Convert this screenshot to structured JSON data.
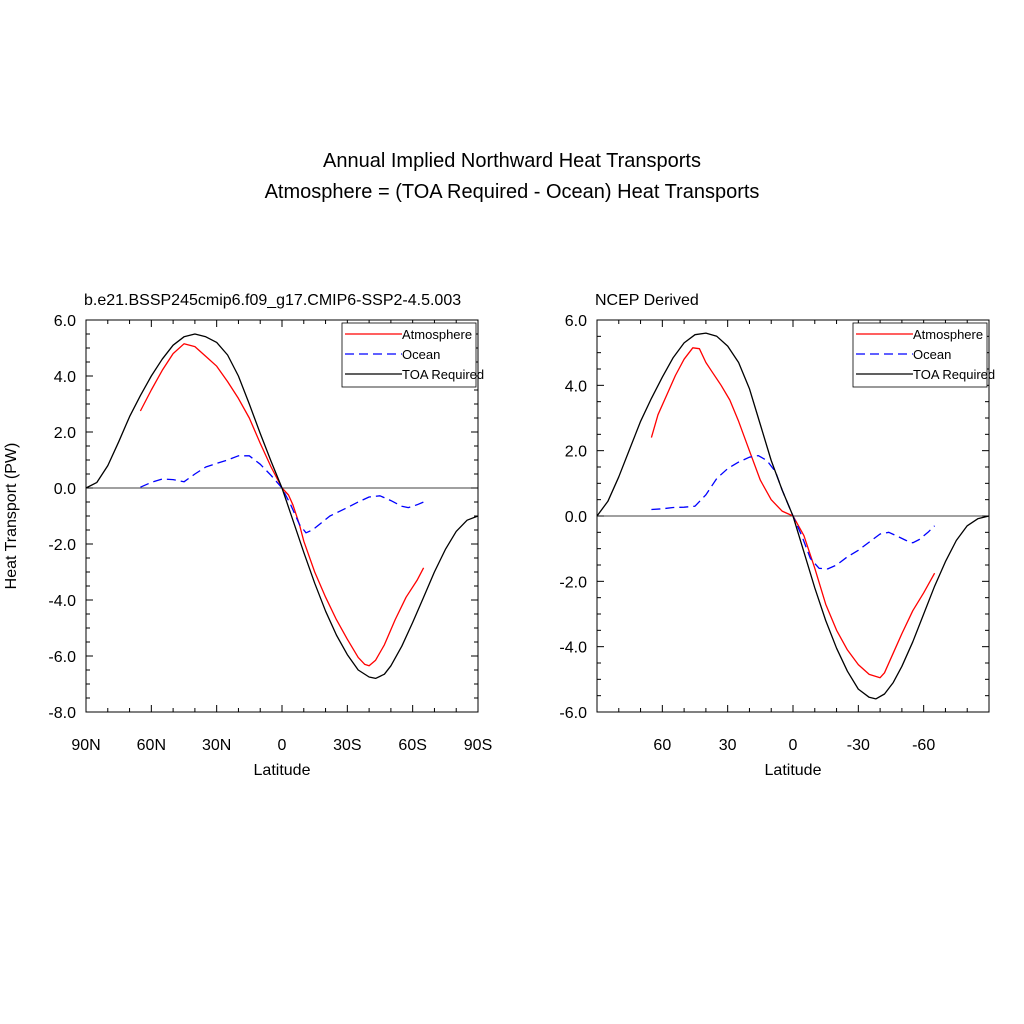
{
  "figure": {
    "title_line1": "Annual Implied Northward Heat Transports",
    "title_line2": "Atmosphere = (TOA Required - Ocean) Heat Transports"
  },
  "chart_data": [
    {
      "type": "line",
      "title": "b.e21.BSSP245cmip6.f09_g17.CMIP6-SSP2-4.5.003",
      "xlabel": "Latitude",
      "ylabel": "Heat Transport (PW)",
      "xlim": [
        90,
        -90
      ],
      "ylim": [
        -8,
        6
      ],
      "xticks": [
        90,
        60,
        30,
        0,
        -30,
        -60,
        -90
      ],
      "xtick_labels": [
        "90N",
        "60N",
        "30N",
        "0",
        "30S",
        "60S",
        "90S"
      ],
      "yticks": [
        -8,
        -6,
        -4,
        -2,
        0,
        2,
        4,
        6
      ],
      "ytick_labels": [
        "-8.0",
        "-6.0",
        "-4.0",
        "-2.0",
        "0.0",
        "2.0",
        "4.0",
        "6.0"
      ],
      "zero_line": true,
      "legend_position": "top-right",
      "series": [
        {
          "name": "Atmosphere",
          "color": "#ff0000",
          "dash": "solid",
          "points": [
            [
              65,
              2.75
            ],
            [
              60,
              3.5
            ],
            [
              55,
              4.2
            ],
            [
              50,
              4.8
            ],
            [
              45,
              5.15
            ],
            [
              40,
              5.05
            ],
            [
              35,
              4.7
            ],
            [
              30,
              4.35
            ],
            [
              25,
              3.8
            ],
            [
              20,
              3.2
            ],
            [
              15,
              2.5
            ],
            [
              10,
              1.6
            ],
            [
              5,
              0.75
            ],
            [
              0,
              0
            ],
            [
              -3,
              -0.25
            ],
            [
              -5,
              -0.6
            ],
            [
              -8,
              -1.3
            ],
            [
              -10,
              -1.9
            ],
            [
              -15,
              -3.0
            ],
            [
              -20,
              -3.9
            ],
            [
              -25,
              -4.7
            ],
            [
              -30,
              -5.4
            ],
            [
              -35,
              -6.05
            ],
            [
              -38,
              -6.3
            ],
            [
              -40,
              -6.35
            ],
            [
              -43,
              -6.15
            ],
            [
              -47,
              -5.6
            ],
            [
              -52,
              -4.7
            ],
            [
              -57,
              -3.9
            ],
            [
              -62,
              -3.3
            ],
            [
              -65,
              -2.85
            ]
          ]
        },
        {
          "name": "Ocean",
          "color": "#0000ff",
          "dash": "dashed",
          "points": [
            [
              65,
              0.03
            ],
            [
              60,
              0.2
            ],
            [
              55,
              0.32
            ],
            [
              50,
              0.3
            ],
            [
              45,
              0.22
            ],
            [
              40,
              0.5
            ],
            [
              35,
              0.75
            ],
            [
              30,
              0.88
            ],
            [
              25,
              1.0
            ],
            [
              20,
              1.15
            ],
            [
              15,
              1.15
            ],
            [
              10,
              0.85
            ],
            [
              5,
              0.45
            ],
            [
              0,
              0
            ],
            [
              -4,
              -0.6
            ],
            [
              -8,
              -1.3
            ],
            [
              -11,
              -1.6
            ],
            [
              -14,
              -1.5
            ],
            [
              -18,
              -1.25
            ],
            [
              -22,
              -1.0
            ],
            [
              -26,
              -0.85
            ],
            [
              -30,
              -0.7
            ],
            [
              -35,
              -0.5
            ],
            [
              -40,
              -0.32
            ],
            [
              -45,
              -0.28
            ],
            [
              -50,
              -0.45
            ],
            [
              -55,
              -0.65
            ],
            [
              -58,
              -0.7
            ],
            [
              -62,
              -0.6
            ],
            [
              -65,
              -0.5
            ]
          ]
        },
        {
          "name": "TOA Required",
          "color": "#000000",
          "dash": "solid",
          "points": [
            [
              90,
              0
            ],
            [
              85,
              0.2
            ],
            [
              80,
              0.8
            ],
            [
              75,
              1.65
            ],
            [
              70,
              2.55
            ],
            [
              65,
              3.3
            ],
            [
              60,
              4.0
            ],
            [
              55,
              4.6
            ],
            [
              50,
              5.1
            ],
            [
              45,
              5.4
            ],
            [
              40,
              5.5
            ],
            [
              35,
              5.4
            ],
            [
              30,
              5.2
            ],
            [
              25,
              4.75
            ],
            [
              20,
              4.0
            ],
            [
              15,
              3.0
            ],
            [
              10,
              1.95
            ],
            [
              5,
              0.95
            ],
            [
              0,
              0
            ],
            [
              -5,
              -1.15
            ],
            [
              -10,
              -2.3
            ],
            [
              -15,
              -3.4
            ],
            [
              -20,
              -4.4
            ],
            [
              -25,
              -5.25
            ],
            [
              -30,
              -5.95
            ],
            [
              -35,
              -6.5
            ],
            [
              -40,
              -6.75
            ],
            [
              -43,
              -6.8
            ],
            [
              -47,
              -6.65
            ],
            [
              -50,
              -6.35
            ],
            [
              -55,
              -5.65
            ],
            [
              -60,
              -4.8
            ],
            [
              -65,
              -3.9
            ],
            [
              -70,
              -3.0
            ],
            [
              -75,
              -2.2
            ],
            [
              -80,
              -1.55
            ],
            [
              -85,
              -1.15
            ],
            [
              -90,
              -1.0
            ]
          ]
        }
      ]
    },
    {
      "type": "line",
      "title": "NCEP Derived",
      "xlabel": "Latitude",
      "ylabel": "",
      "xlim": [
        90,
        -90
      ],
      "ylim": [
        -6,
        6
      ],
      "xticks": [
        60,
        30,
        0,
        -30,
        -60
      ],
      "xtick_labels": [
        "60",
        "30",
        "0",
        "-30",
        "-60"
      ],
      "yticks": [
        -6,
        -4,
        -2,
        0,
        2,
        4,
        6
      ],
      "ytick_labels": [
        "-6.0",
        "-4.0",
        "-2.0",
        "0.0",
        "2.0",
        "4.0",
        "6.0"
      ],
      "zero_line": true,
      "legend_position": "top-right",
      "series": [
        {
          "name": "Atmosphere",
          "color": "#ff0000",
          "dash": "solid",
          "points": [
            [
              65,
              2.4
            ],
            [
              62,
              3.1
            ],
            [
              58,
              3.7
            ],
            [
              54,
              4.3
            ],
            [
              50,
              4.8
            ],
            [
              46,
              5.15
            ],
            [
              43,
              5.12
            ],
            [
              40,
              4.7
            ],
            [
              37,
              4.4
            ],
            [
              33,
              4.0
            ],
            [
              29,
              3.55
            ],
            [
              25,
              2.9
            ],
            [
              20,
              2.0
            ],
            [
              15,
              1.1
            ],
            [
              10,
              0.5
            ],
            [
              5,
              0.15
            ],
            [
              0,
              0
            ],
            [
              -5,
              -0.6
            ],
            [
              -10,
              -1.6
            ],
            [
              -15,
              -2.7
            ],
            [
              -20,
              -3.5
            ],
            [
              -25,
              -4.1
            ],
            [
              -30,
              -4.55
            ],
            [
              -35,
              -4.85
            ],
            [
              -40,
              -4.95
            ],
            [
              -42,
              -4.8
            ],
            [
              -46,
              -4.2
            ],
            [
              -50,
              -3.6
            ],
            [
              -55,
              -2.9
            ],
            [
              -60,
              -2.35
            ],
            [
              -65,
              -1.75
            ]
          ]
        },
        {
          "name": "Ocean",
          "color": "#0000ff",
          "dash": "dashed",
          "points": [
            [
              65,
              0.2
            ],
            [
              60,
              0.22
            ],
            [
              55,
              0.26
            ],
            [
              50,
              0.27
            ],
            [
              45,
              0.3
            ],
            [
              40,
              0.65
            ],
            [
              35,
              1.15
            ],
            [
              30,
              1.45
            ],
            [
              25,
              1.65
            ],
            [
              20,
              1.8
            ],
            [
              16,
              1.85
            ],
            [
              12,
              1.7
            ],
            [
              8,
              1.35
            ],
            [
              5,
              0.8
            ],
            [
              0,
              0
            ],
            [
              -4,
              -0.6
            ],
            [
              -8,
              -1.3
            ],
            [
              -12,
              -1.6
            ],
            [
              -16,
              -1.62
            ],
            [
              -20,
              -1.5
            ],
            [
              -25,
              -1.25
            ],
            [
              -30,
              -1.05
            ],
            [
              -35,
              -0.8
            ],
            [
              -40,
              -0.55
            ],
            [
              -44,
              -0.5
            ],
            [
              -48,
              -0.62
            ],
            [
              -52,
              -0.75
            ],
            [
              -55,
              -0.82
            ],
            [
              -58,
              -0.72
            ],
            [
              -62,
              -0.5
            ],
            [
              -65,
              -0.3
            ]
          ]
        },
        {
          "name": "TOA Required",
          "color": "#000000",
          "dash": "solid",
          "points": [
            [
              90,
              0
            ],
            [
              85,
              0.45
            ],
            [
              80,
              1.2
            ],
            [
              75,
              2.05
            ],
            [
              70,
              2.9
            ],
            [
              65,
              3.6
            ],
            [
              60,
              4.25
            ],
            [
              55,
              4.85
            ],
            [
              50,
              5.3
            ],
            [
              45,
              5.55
            ],
            [
              40,
              5.6
            ],
            [
              35,
              5.5
            ],
            [
              30,
              5.2
            ],
            [
              25,
              4.7
            ],
            [
              20,
              3.9
            ],
            [
              15,
              2.8
            ],
            [
              10,
              1.7
            ],
            [
              5,
              0.8
            ],
            [
              0,
              0
            ],
            [
              -5,
              -1.1
            ],
            [
              -10,
              -2.2
            ],
            [
              -15,
              -3.2
            ],
            [
              -20,
              -4.05
            ],
            [
              -25,
              -4.75
            ],
            [
              -30,
              -5.3
            ],
            [
              -35,
              -5.55
            ],
            [
              -38,
              -5.6
            ],
            [
              -42,
              -5.45
            ],
            [
              -46,
              -5.1
            ],
            [
              -50,
              -4.6
            ],
            [
              -55,
              -3.85
            ],
            [
              -60,
              -3.0
            ],
            [
              -65,
              -2.15
            ],
            [
              -70,
              -1.4
            ],
            [
              -75,
              -0.75
            ],
            [
              -80,
              -0.3
            ],
            [
              -85,
              -0.08
            ],
            [
              -90,
              0
            ]
          ]
        }
      ]
    }
  ]
}
